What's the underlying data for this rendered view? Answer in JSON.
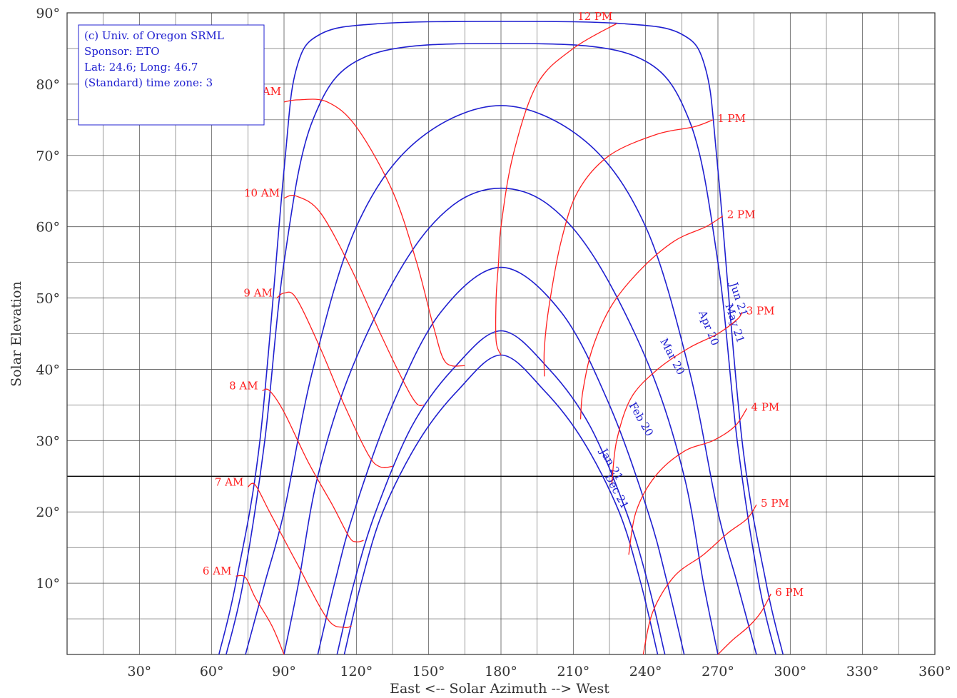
{
  "chart_data": {
    "type": "line",
    "title": "",
    "xlabel": "East <-- Solar Azimuth --> West",
    "ylabel": "Solar Elevation",
    "xlim": [
      0,
      360
    ],
    "ylim": [
      0,
      90
    ],
    "xticks": [
      {
        "value": 30,
        "label": "30°"
      },
      {
        "value": 60,
        "label": "60°"
      },
      {
        "value": 90,
        "label": "90°"
      },
      {
        "value": 120,
        "label": "120°"
      },
      {
        "value": 150,
        "label": "150°"
      },
      {
        "value": 180,
        "label": "180°"
      },
      {
        "value": 210,
        "label": "210°"
      },
      {
        "value": 240,
        "label": "240°"
      },
      {
        "value": 270,
        "label": "270°"
      },
      {
        "value": 300,
        "label": "300°"
      },
      {
        "value": 330,
        "label": "330°"
      },
      {
        "value": 360,
        "label": "360°"
      }
    ],
    "yticks": [
      {
        "value": 10,
        "label": "10°"
      },
      {
        "value": 20,
        "label": "20°"
      },
      {
        "value": 30,
        "label": "30°"
      },
      {
        "value": 40,
        "label": "40°"
      },
      {
        "value": 50,
        "label": "50°"
      },
      {
        "value": 60,
        "label": "60°"
      },
      {
        "value": 70,
        "label": "70°"
      },
      {
        "value": 80,
        "label": "80°"
      },
      {
        "value": 90,
        "label": "90°"
      }
    ],
    "grid": true,
    "reference_line_y": 25,
    "legend_box": {
      "position": "top-left",
      "lines": [
        "(c) Univ. of Oregon SRML",
        "Sponsor: ETO",
        "Lat: 24.6; Long: 46.7",
        "(Standard) time zone: 3"
      ]
    },
    "colors": {
      "date_paths": "#2020d0",
      "hour_lines": "#ff2020",
      "grid": "#555555"
    },
    "date_series": [
      {
        "label": "Jun 21",
        "points": [
          [
            63,
            0
          ],
          [
            70,
            10
          ],
          [
            80,
            30
          ],
          [
            90,
            68
          ],
          [
            95,
            82
          ],
          [
            105,
            87
          ],
          [
            130,
            88.5
          ],
          [
            180,
            88.8
          ],
          [
            230,
            88.5
          ],
          [
            255,
            87
          ],
          [
            265,
            82
          ],
          [
            270,
            68
          ],
          [
            280,
            30
          ],
          [
            290,
            10
          ],
          [
            297,
            0
          ]
        ]
      },
      {
        "label": "May 21",
        "points": [
          [
            66,
            0
          ],
          [
            73,
            10
          ],
          [
            82,
            30
          ],
          [
            90,
            55
          ],
          [
            102,
            75
          ],
          [
            125,
            84
          ],
          [
            180,
            85.7
          ],
          [
            235,
            84
          ],
          [
            258,
            75
          ],
          [
            270,
            55
          ],
          [
            278,
            30
          ],
          [
            287,
            10
          ],
          [
            294,
            0
          ]
        ]
      },
      {
        "label": "Apr 20",
        "points": [
          [
            74,
            0
          ],
          [
            82,
            10
          ],
          [
            90,
            20
          ],
          [
            102,
            40
          ],
          [
            120,
            60
          ],
          [
            145,
            72
          ],
          [
            180,
            77
          ],
          [
            215,
            72
          ],
          [
            240,
            60
          ],
          [
            258,
            40
          ],
          [
            270,
            20
          ],
          [
            278,
            10
          ],
          [
            286,
            0
          ]
        ]
      },
      {
        "label": "Mar 20",
        "points": [
          [
            90,
            0
          ],
          [
            96,
            10
          ],
          [
            104,
            25
          ],
          [
            118,
            40
          ],
          [
            140,
            55
          ],
          [
            160,
            63
          ],
          [
            180,
            65.4
          ],
          [
            200,
            63
          ],
          [
            220,
            55
          ],
          [
            242,
            40
          ],
          [
            256,
            25
          ],
          [
            264,
            10
          ],
          [
            270,
            0
          ]
        ]
      },
      {
        "label": "Feb 20",
        "points": [
          [
            104,
            0
          ],
          [
            111,
            10
          ],
          [
            119,
            20
          ],
          [
            135,
            35
          ],
          [
            155,
            48
          ],
          [
            180,
            54.3
          ],
          [
            205,
            48
          ],
          [
            225,
            35
          ],
          [
            241,
            20
          ],
          [
            249,
            10
          ],
          [
            256,
            0
          ]
        ]
      },
      {
        "label": "Jan 21",
        "points": [
          [
            112,
            0
          ],
          [
            119,
            10
          ],
          [
            128,
            20
          ],
          [
            143,
            32
          ],
          [
            160,
            40
          ],
          [
            180,
            45.4
          ],
          [
            200,
            40
          ],
          [
            217,
            32
          ],
          [
            232,
            20
          ],
          [
            241,
            10
          ],
          [
            248,
            0
          ]
        ]
      },
      {
        "label": "Dec 21",
        "points": [
          [
            115,
            0
          ],
          [
            122,
            10
          ],
          [
            131,
            20
          ],
          [
            146,
            30
          ],
          [
            162,
            37
          ],
          [
            180,
            42
          ],
          [
            198,
            37
          ],
          [
            214,
            30
          ],
          [
            229,
            20
          ],
          [
            238,
            10
          ],
          [
            245,
            0
          ]
        ]
      }
    ],
    "hour_series": [
      {
        "label": "6 AM",
        "points": [
          [
            70,
            11
          ],
          [
            74,
            10.8
          ],
          [
            78,
            8
          ],
          [
            85,
            4
          ],
          [
            90,
            0
          ]
        ]
      },
      {
        "label": "7 AM",
        "points": [
          [
            75,
            23.5
          ],
          [
            78,
            23.8
          ],
          [
            84,
            20
          ],
          [
            95,
            13
          ],
          [
            108,
            5
          ],
          [
            115,
            3.8
          ],
          [
            118,
            4
          ]
        ]
      },
      {
        "label": "8 AM",
        "points": [
          [
            81,
            37
          ],
          [
            84,
            37
          ],
          [
            90,
            34
          ],
          [
            100,
            27
          ],
          [
            110,
            21
          ],
          [
            117,
            16.5
          ],
          [
            120,
            15.8
          ],
          [
            123,
            16
          ]
        ]
      },
      {
        "label": "9 AM",
        "points": [
          [
            87,
            50
          ],
          [
            90,
            50.7
          ],
          [
            95,
            50
          ],
          [
            105,
            43
          ],
          [
            115,
            35
          ],
          [
            125,
            28
          ],
          [
            130,
            26.3
          ],
          [
            135,
            26.4
          ]
        ]
      },
      {
        "label": "10 AM",
        "points": [
          [
            90,
            64
          ],
          [
            95,
            64.3
          ],
          [
            105,
            62
          ],
          [
            118,
            54
          ],
          [
            130,
            45
          ],
          [
            140,
            38
          ],
          [
            145,
            35.2
          ],
          [
            148,
            35
          ]
        ]
      },
      {
        "label": "11 AM",
        "points": [
          [
            90,
            77.5
          ],
          [
            96,
            77.8
          ],
          [
            108,
            77.5
          ],
          [
            120,
            74
          ],
          [
            135,
            65
          ],
          [
            145,
            55
          ],
          [
            152,
            46
          ],
          [
            157,
            41
          ],
          [
            165,
            40.5
          ]
        ]
      },
      {
        "label": "12 PM",
        "points": [
          [
            180,
            42
          ],
          [
            178,
            44
          ],
          [
            178,
            50
          ],
          [
            179,
            55
          ],
          [
            180,
            60
          ],
          [
            185,
            70
          ],
          [
            195,
            80
          ],
          [
            210,
            85
          ],
          [
            228,
            88.5
          ]
        ]
      },
      {
        "label": "1 PM",
        "points": [
          [
            198,
            39
          ],
          [
            198,
            43
          ],
          [
            200,
            49
          ],
          [
            205,
            58
          ],
          [
            212,
            65
          ],
          [
            225,
            70
          ],
          [
            245,
            73
          ],
          [
            260,
            74
          ],
          [
            268,
            75
          ]
        ]
      },
      {
        "label": "2 PM",
        "points": [
          [
            213,
            33
          ],
          [
            214,
            37
          ],
          [
            218,
            43
          ],
          [
            226,
            49
          ],
          [
            238,
            54
          ],
          [
            252,
            58
          ],
          [
            265,
            60
          ],
          [
            272,
            61.5
          ]
        ]
      },
      {
        "label": "3 PM",
        "points": [
          [
            226,
            24
          ],
          [
            228,
            30
          ],
          [
            234,
            36
          ],
          [
            245,
            40
          ],
          [
            258,
            43
          ],
          [
            270,
            45
          ],
          [
            278,
            47
          ],
          [
            280,
            48
          ]
        ]
      },
      {
        "label": "4 PM",
        "points": [
          [
            233,
            14
          ],
          [
            236,
            20
          ],
          [
            244,
            25
          ],
          [
            256,
            28.5
          ],
          [
            268,
            30
          ],
          [
            277,
            32
          ],
          [
            282,
            34.5
          ]
        ]
      },
      {
        "label": "5 PM",
        "points": [
          [
            239,
            0
          ],
          [
            243,
            6
          ],
          [
            252,
            11
          ],
          [
            264,
            14
          ],
          [
            274,
            17
          ],
          [
            282,
            19
          ],
          [
            286,
            21
          ]
        ]
      },
      {
        "label": "6 PM",
        "points": [
          [
            270,
            0
          ],
          [
            276,
            2
          ],
          [
            283,
            4
          ],
          [
            288,
            6
          ],
          [
            292,
            8.5
          ]
        ]
      }
    ]
  }
}
